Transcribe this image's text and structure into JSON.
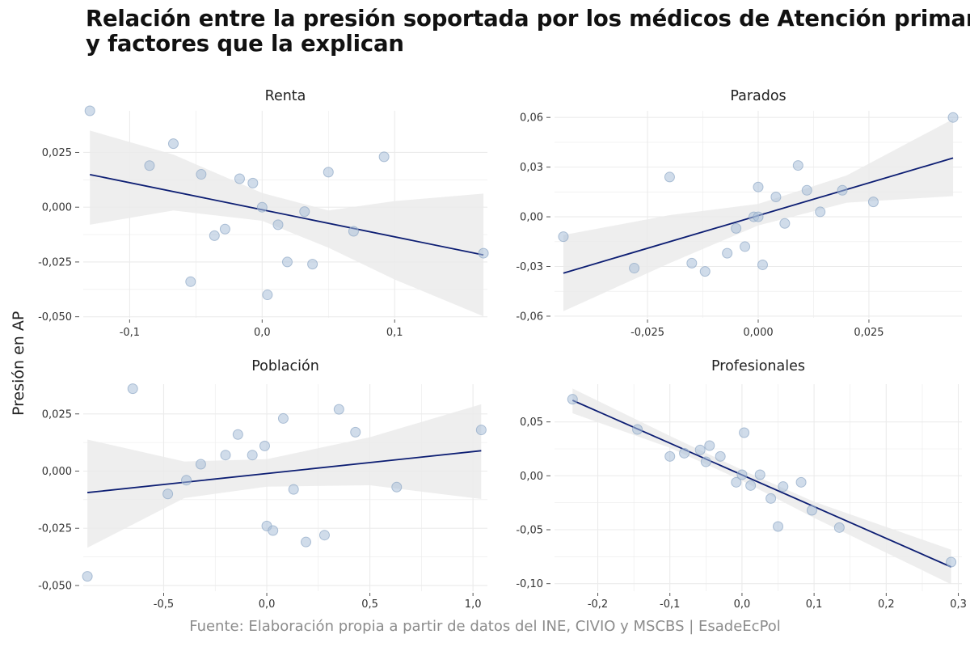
{
  "title": {
    "line1": "Relación entre la presión soportada por los médicos de Atención primaria",
    "line2": "y factores que la explican"
  },
  "y_axis_label": "Presión en AP",
  "caption": "Fuente: Elaboración propia a partir de datos del INE, CIVIO y MSCBS | EsadeEcPol",
  "colors": {
    "point_fill": "#a9bfd9",
    "point_stroke": "#8fa8c6",
    "line": "#0d1e73",
    "ribbon": "#ebebeb",
    "grid": "#ebebeb"
  },
  "chart_data": [
    {
      "type": "scatter",
      "title": "Renta",
      "xlim": [
        -0.135,
        0.17
      ],
      "ylim": [
        -0.0505,
        0.044
      ],
      "x_ticks": [
        -0.1,
        0.0,
        0.1
      ],
      "x_tick_labels": [
        "-0,1",
        "0,0",
        "0,1"
      ],
      "y_ticks": [
        -0.05,
        -0.025,
        0.0,
        0.025
      ],
      "y_tick_labels": [
        "-0,050",
        "-0,025",
        "0,000",
        "0,025"
      ],
      "points": [
        [
          -0.13,
          0.044
        ],
        [
          -0.067,
          0.029
        ],
        [
          -0.085,
          0.019
        ],
        [
          -0.046,
          0.015
        ],
        [
          -0.017,
          0.013
        ],
        [
          -0.007,
          0.011
        ],
        [
          0.0,
          0.0
        ],
        [
          0.012,
          -0.008
        ],
        [
          0.032,
          -0.002
        ],
        [
          0.05,
          0.016
        ],
        [
          0.092,
          0.023
        ],
        [
          0.069,
          -0.011
        ],
        [
          0.019,
          -0.025
        ],
        [
          0.038,
          -0.026
        ],
        [
          0.004,
          -0.04
        ],
        [
          -0.036,
          -0.013
        ],
        [
          -0.028,
          -0.01
        ],
        [
          -0.054,
          -0.034
        ],
        [
          0.167,
          -0.021
        ]
      ],
      "fit_line": [
        [
          -0.13,
          0.0149
        ],
        [
          0.167,
          -0.0218
        ]
      ],
      "ci_band": [
        [
          -0.13,
          0.035,
          -0.008
        ],
        [
          -0.067,
          0.024,
          -0.0015
        ],
        [
          0.0,
          0.0065,
          -0.0062
        ],
        [
          0.05,
          -0.0015,
          -0.0185
        ],
        [
          0.1,
          0.0028,
          -0.033
        ],
        [
          0.167,
          0.0062,
          -0.0498
        ]
      ]
    },
    {
      "type": "scatter",
      "title": "Parados",
      "xlim": [
        -0.046,
        0.046
      ],
      "ylim": [
        -0.061,
        0.064
      ],
      "x_ticks": [
        -0.025,
        0.0,
        0.025
      ],
      "x_tick_labels": [
        "-0,025",
        "0,000",
        "0,025"
      ],
      "y_ticks": [
        -0.06,
        -0.03,
        0.0,
        0.03,
        0.06
      ],
      "y_tick_labels": [
        "-0,06",
        "-0,03",
        "0,00",
        "0,03",
        "0,06"
      ],
      "points": [
        [
          -0.044,
          -0.012
        ],
        [
          -0.028,
          -0.031
        ],
        [
          -0.02,
          0.024
        ],
        [
          -0.015,
          -0.028
        ],
        [
          -0.012,
          -0.033
        ],
        [
          -0.007,
          -0.022
        ],
        [
          -0.005,
          -0.007
        ],
        [
          -0.003,
          -0.018
        ],
        [
          -0.001,
          0.0
        ],
        [
          0.0,
          0.018
        ],
        [
          0.0,
          0.0
        ],
        [
          0.001,
          -0.029
        ],
        [
          0.004,
          0.012
        ],
        [
          0.006,
          -0.004
        ],
        [
          0.009,
          0.031
        ],
        [
          0.011,
          0.016
        ],
        [
          0.014,
          0.003
        ],
        [
          0.019,
          0.016
        ],
        [
          0.026,
          0.009
        ],
        [
          0.044,
          0.06
        ]
      ],
      "fit_line": [
        [
          -0.044,
          -0.034
        ],
        [
          0.044,
          0.0355
        ]
      ],
      "ci_band": [
        [
          -0.044,
          -0.011,
          -0.057
        ],
        [
          -0.02,
          0.001,
          -0.028
        ],
        [
          0.0,
          0.0078,
          -0.0052
        ],
        [
          0.02,
          0.025,
          0.0085
        ],
        [
          0.044,
          0.059,
          0.0125
        ]
      ]
    },
    {
      "type": "scatter",
      "title": "Población",
      "xlim": [
        -0.89,
        1.07
      ],
      "ylim": [
        -0.0525,
        0.038
      ],
      "x_ticks": [
        -0.5,
        0.0,
        0.5,
        1.0
      ],
      "x_tick_labels": [
        "-0,5",
        "0,0",
        "0,5",
        "1,0"
      ],
      "y_ticks": [
        -0.05,
        -0.025,
        0.0,
        0.025
      ],
      "y_tick_labels": [
        "-0,050",
        "-0,025",
        "0,000",
        "0,025"
      ],
      "points": [
        [
          -0.87,
          -0.046
        ],
        [
          -0.65,
          0.036
        ],
        [
          -0.48,
          -0.01
        ],
        [
          -0.39,
          -0.004
        ],
        [
          -0.32,
          0.003
        ],
        [
          -0.2,
          0.007
        ],
        [
          -0.14,
          0.016
        ],
        [
          -0.07,
          0.007
        ],
        [
          -0.01,
          0.011
        ],
        [
          0.0,
          -0.024
        ],
        [
          0.03,
          -0.026
        ],
        [
          0.08,
          0.023
        ],
        [
          0.13,
          -0.008
        ],
        [
          0.19,
          -0.031
        ],
        [
          0.28,
          -0.028
        ],
        [
          0.35,
          0.027
        ],
        [
          0.43,
          0.017
        ],
        [
          0.63,
          -0.007
        ],
        [
          1.04,
          0.018
        ]
      ],
      "fit_line": [
        [
          -0.87,
          -0.0094
        ],
        [
          1.04,
          0.0089
        ]
      ],
      "ci_band": [
        [
          -0.87,
          0.0138,
          -0.0335
        ],
        [
          -0.4,
          0.0042,
          -0.0118
        ],
        [
          0.0,
          0.0052,
          -0.0068
        ],
        [
          0.5,
          0.0148,
          -0.0062
        ],
        [
          1.04,
          0.0292,
          -0.0122
        ]
      ]
    },
    {
      "type": "scatter",
      "title": "Profesionales",
      "xlim": [
        -0.26,
        0.305
      ],
      "ylim": [
        -0.107,
        0.085
      ],
      "x_ticks": [
        -0.2,
        -0.1,
        0.0,
        0.1,
        0.2,
        0.3
      ],
      "x_tick_labels": [
        "-0,2",
        "-0,1",
        "0,0",
        "0,1",
        "0,2",
        "0,3"
      ],
      "y_ticks": [
        -0.1,
        -0.05,
        0.0,
        0.05
      ],
      "y_tick_labels": [
        "-0,10",
        "-0,05",
        "0,00",
        "0,05"
      ],
      "points": [
        [
          -0.235,
          0.071
        ],
        [
          -0.145,
          0.043
        ],
        [
          -0.1,
          0.018
        ],
        [
          -0.08,
          0.021
        ],
        [
          -0.058,
          0.024
        ],
        [
          -0.05,
          0.013
        ],
        [
          -0.045,
          0.028
        ],
        [
          -0.03,
          0.018
        ],
        [
          -0.008,
          -0.006
        ],
        [
          0.0,
          0.001
        ],
        [
          0.003,
          0.04
        ],
        [
          0.012,
          -0.009
        ],
        [
          0.025,
          0.001
        ],
        [
          0.04,
          -0.021
        ],
        [
          0.05,
          -0.047
        ],
        [
          0.057,
          -0.01
        ],
        [
          0.082,
          -0.006
        ],
        [
          0.097,
          -0.032
        ],
        [
          0.135,
          -0.048
        ],
        [
          0.29,
          -0.08
        ]
      ],
      "fit_line": [
        [
          -0.235,
          0.07
        ],
        [
          0.29,
          -0.0845
        ]
      ],
      "ci_band": [
        [
          -0.235,
          0.081,
          0.058
        ],
        [
          -0.1,
          0.037,
          0.026
        ],
        [
          0.0,
          0.0055,
          -0.0045
        ],
        [
          0.1,
          -0.024,
          -0.039
        ],
        [
          0.29,
          -0.0685,
          -0.1005
        ]
      ]
    }
  ]
}
